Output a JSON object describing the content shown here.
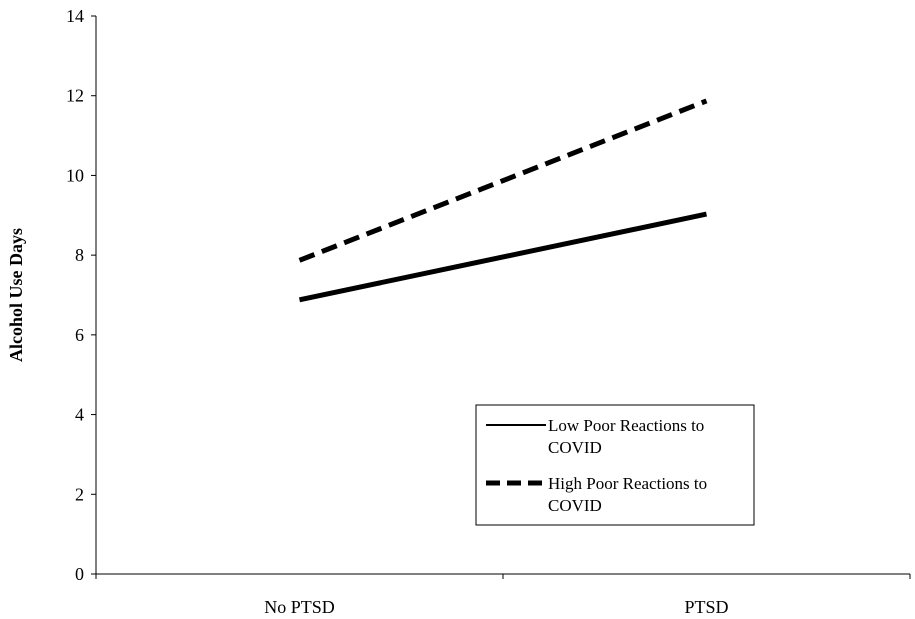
{
  "chart_data": {
    "type": "line",
    "categories": [
      "No PTSD",
      "PTSD"
    ],
    "series": [
      {
        "name": "Low Poor Reactions to COVID",
        "values": [
          6.88,
          9.03
        ],
        "style": "solid"
      },
      {
        "name": "High Poor Reactions to COVID",
        "values": [
          7.87,
          11.87
        ],
        "style": "dashed"
      }
    ],
    "ylabel": "Alcohol Use Days",
    "ylim": [
      0,
      14
    ],
    "yticks": [
      0,
      2,
      4,
      6,
      8,
      10,
      12,
      14
    ],
    "grid": false,
    "legend_position": "bottom-right",
    "legend_entries": [
      {
        "line1": "Low Poor Reactions to",
        "line2": "COVID"
      },
      {
        "line1": "High Poor Reactions to",
        "line2": "COVID"
      }
    ],
    "line_color": "#000000"
  }
}
